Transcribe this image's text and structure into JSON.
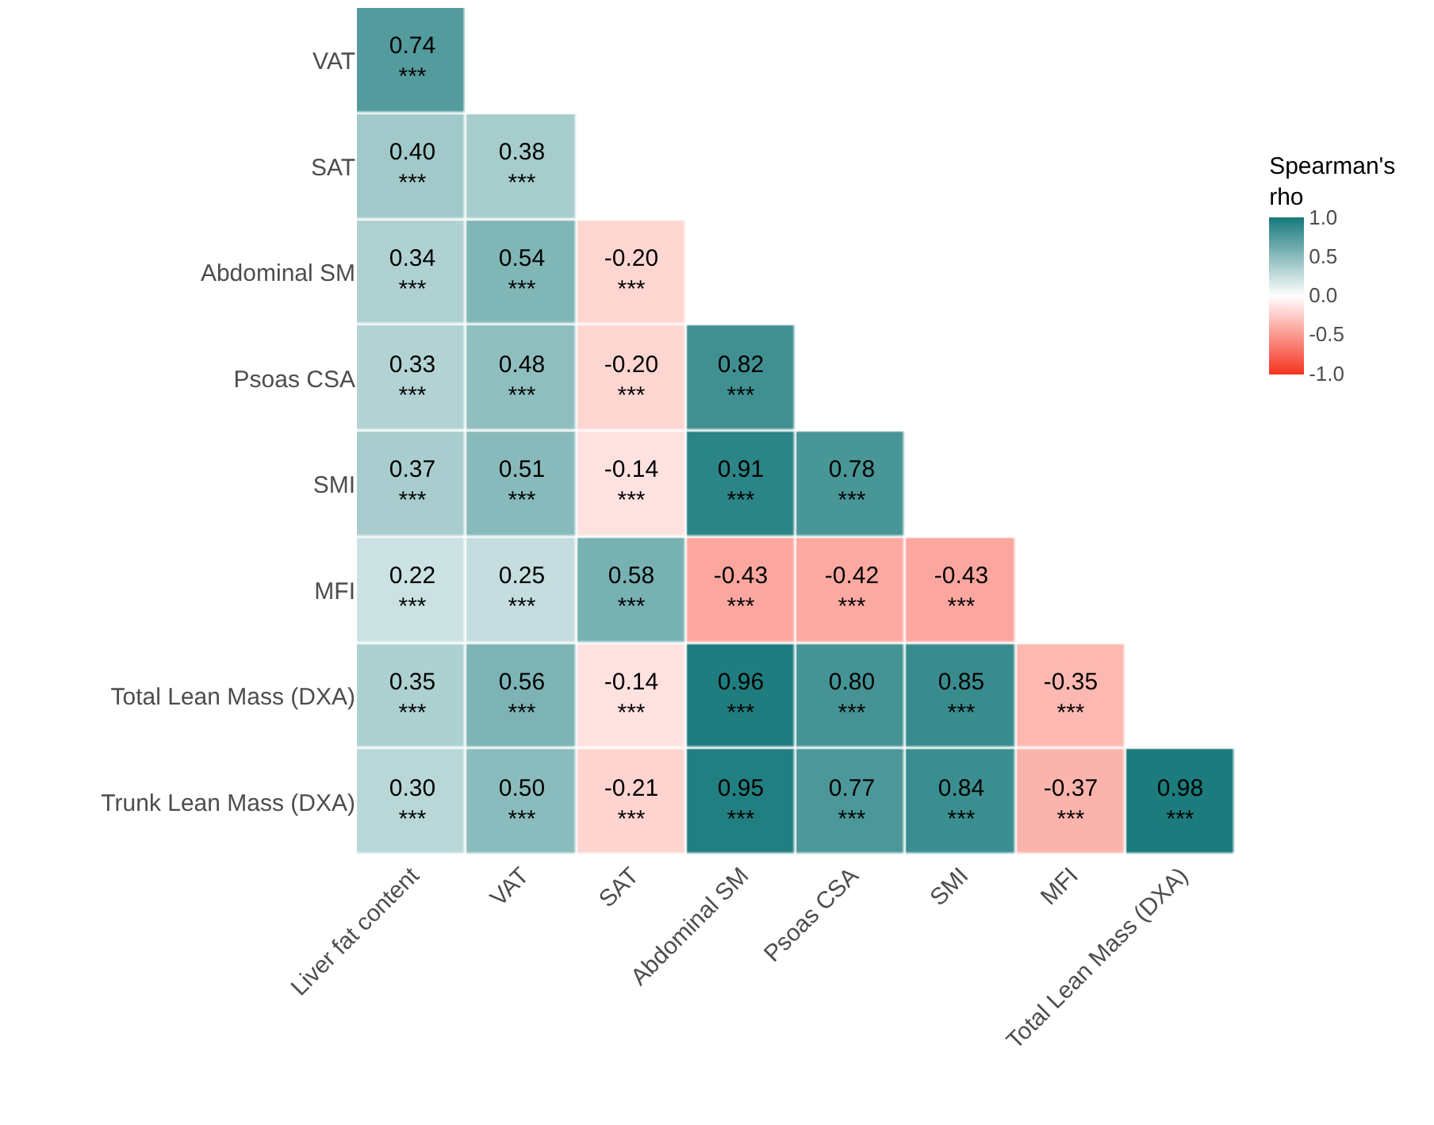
{
  "chart_data": {
    "type": "heatmap",
    "categories": [
      "Liver fat content",
      "VAT",
      "SAT",
      "Abdominal SM",
      "Psoas CSA",
      "SMI",
      "MFI",
      "Total Lean Mass (DXA)"
    ],
    "y_categories": [
      "VAT",
      "SAT",
      "Abdominal SM",
      "Psoas CSA",
      "SMI",
      "MFI",
      "Total Lean Mass (DXA)",
      "Trunk Lean Mass (DXA)"
    ],
    "cells": [
      [
        0.74,
        null,
        null,
        null,
        null,
        null,
        null,
        null
      ],
      [
        0.4,
        0.38,
        null,
        null,
        null,
        null,
        null,
        null
      ],
      [
        0.34,
        0.54,
        -0.2,
        null,
        null,
        null,
        null,
        null
      ],
      [
        0.33,
        0.48,
        -0.2,
        0.82,
        null,
        null,
        null,
        null
      ],
      [
        0.37,
        0.51,
        -0.14,
        0.91,
        0.78,
        null,
        null,
        null
      ],
      [
        0.22,
        0.25,
        0.58,
        -0.43,
        -0.42,
        -0.43,
        null,
        null
      ],
      [
        0.35,
        0.56,
        -0.14,
        0.96,
        0.8,
        0.85,
        -0.35,
        null
      ],
      [
        0.3,
        0.5,
        -0.21,
        0.95,
        0.77,
        0.84,
        -0.37,
        0.98
      ]
    ],
    "cell_labels": [
      [
        "0.74\n***",
        null,
        null,
        null,
        null,
        null,
        null,
        null
      ],
      [
        "0.40\n***",
        "0.38\n***",
        null,
        null,
        null,
        null,
        null,
        null
      ],
      [
        "0.34\n***",
        "0.54\n***",
        "-0.20\n***",
        null,
        null,
        null,
        null,
        null
      ],
      [
        "0.33\n***",
        "0.48\n***",
        "-0.20\n***",
        "0.82\n***",
        null,
        null,
        null,
        null
      ],
      [
        "0.37\n***",
        "0.51\n***",
        "-0.14\n***",
        "0.91\n***",
        "0.78\n***",
        null,
        null,
        null
      ],
      [
        "0.22\n***",
        "0.25\n***",
        "0.58\n***",
        "-0.43\n***",
        "-0.42\n***",
        "-0.43\n***",
        null,
        null
      ],
      [
        "0.35\n***",
        "0.56\n***",
        "-0.14\n***",
        "0.96\n***",
        "0.80\n***",
        "0.85\n***",
        "-0.35\n***",
        null
      ],
      [
        "0.30\n***",
        "0.50\n***",
        "-0.21\n***",
        "0.95\n***",
        "0.77\n***",
        "0.84\n***",
        "-0.37\n***",
        "0.98\n***"
      ]
    ],
    "clabel": "Spearman's\nrho",
    "clim": [
      -1,
      1
    ],
    "cticks": [
      {
        "value": 1,
        "label": "1.0"
      },
      {
        "value": 0.5,
        "label": "0.5"
      },
      {
        "value": 0,
        "label": "0.0"
      },
      {
        "value": -0.5,
        "label": "-0.5"
      },
      {
        "value": -1,
        "label": "-1.0"
      }
    ]
  }
}
